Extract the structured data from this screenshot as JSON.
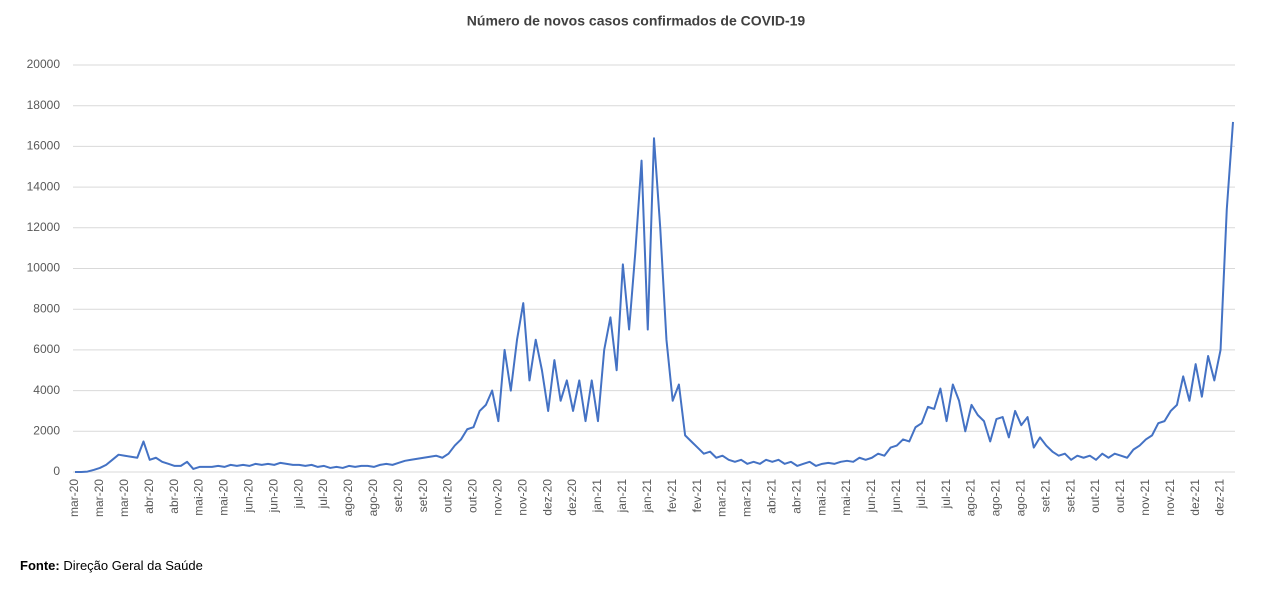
{
  "chart_data": {
    "type": "line",
    "title": "Número de novos casos confirmados de COVID-19",
    "categories": [
      "mar-20",
      null,
      null,
      null,
      "mar-20",
      null,
      null,
      null,
      "mar-20",
      null,
      null,
      null,
      "abr-20",
      null,
      null,
      null,
      "abr-20",
      null,
      null,
      null,
      "mai-20",
      null,
      null,
      null,
      "mai-20",
      null,
      null,
      null,
      "jun-20",
      null,
      null,
      null,
      "jun-20",
      null,
      null,
      null,
      "jul-20",
      null,
      null,
      null,
      "jul-20",
      null,
      null,
      null,
      "ago-20",
      null,
      null,
      null,
      "ago-20",
      null,
      null,
      null,
      "set-20",
      null,
      null,
      null,
      "set-20",
      null,
      null,
      null,
      "out-20",
      null,
      null,
      null,
      "out-20",
      null,
      null,
      null,
      "nov-20",
      null,
      null,
      null,
      "nov-20",
      null,
      null,
      null,
      "dez-20",
      null,
      null,
      null,
      "dez-20",
      null,
      null,
      null,
      "jan-21",
      null,
      null,
      null,
      "jan-21",
      null,
      null,
      null,
      "jan-21",
      null,
      null,
      null,
      "fev-21",
      null,
      null,
      null,
      "fev-21",
      null,
      null,
      null,
      "mar-21",
      null,
      null,
      null,
      "mar-21",
      null,
      null,
      null,
      "abr-21",
      null,
      null,
      null,
      "abr-21",
      null,
      null,
      null,
      "mai-21",
      null,
      null,
      null,
      "mai-21",
      null,
      null,
      null,
      "jun-21",
      null,
      null,
      null,
      "jun-21",
      null,
      null,
      null,
      "jul-21",
      null,
      null,
      null,
      "jul-21",
      null,
      null,
      null,
      "ago-21",
      null,
      null,
      null,
      "ago-21",
      null,
      null,
      null,
      "ago-21",
      null,
      null,
      null,
      "set-21",
      null,
      null,
      null,
      "set-21",
      null,
      null,
      null,
      "out-21",
      null,
      null,
      null,
      "out-21",
      null,
      null,
      null,
      "nov-21",
      null,
      null,
      null,
      "nov-21",
      null,
      null,
      null,
      "dez-21",
      null,
      null,
      null,
      "dez-21",
      null,
      null
    ],
    "values": [
      0,
      0,
      20,
      100,
      200,
      350,
      600,
      850,
      800,
      750,
      700,
      1500,
      600,
      700,
      500,
      400,
      300,
      300,
      500,
      150,
      250,
      250,
      250,
      300,
      250,
      350,
      300,
      350,
      300,
      400,
      350,
      400,
      350,
      450,
      400,
      350,
      350,
      300,
      350,
      250,
      300,
      200,
      250,
      200,
      300,
      250,
      300,
      300,
      250,
      350,
      400,
      350,
      450,
      550,
      600,
      650,
      700,
      750,
      800,
      700,
      900,
      1300,
      1600,
      2100,
      2200,
      3000,
      3300,
      4000,
      2500,
      6000,
      4000,
      6500,
      8300,
      4500,
      6500,
      5000,
      3000,
      5500,
      3500,
      4500,
      3000,
      4500,
      2500,
      4500,
      2500,
      6000,
      7600,
      5000,
      10200,
      7000,
      10800,
      15300,
      7000,
      16400,
      12000,
      6500,
      3500,
      4300,
      1800,
      1500,
      1200,
      900,
      1000,
      700,
      800,
      600,
      500,
      600,
      400,
      500,
      400,
      600,
      500,
      600,
      400,
      500,
      300,
      400,
      500,
      300,
      400,
      450,
      400,
      500,
      550,
      500,
      700,
      600,
      700,
      900,
      800,
      1200,
      1300,
      1600,
      1500,
      2200,
      2400,
      3200,
      3100,
      4100,
      2500,
      4300,
      3500,
      2000,
      3300,
      2800,
      2500,
      1500,
      2600,
      2700,
      1700,
      3000,
      2300,
      2700,
      1200,
      1700,
      1300,
      1000,
      800,
      900,
      600,
      800,
      700,
      800,
      600,
      900,
      700,
      900,
      800,
      700,
      1100,
      1300,
      1600,
      1800,
      2400,
      2500,
      3000,
      3300,
      4700,
      3500,
      5300,
      3700,
      5700,
      4500,
      6000,
      12900,
      17200
    ],
    "color": "#4472c4",
    "ylim": [
      0,
      20000
    ],
    "yticks": [
      0,
      2000,
      4000,
      6000,
      8000,
      10000,
      12000,
      14000,
      16000,
      18000,
      20000
    ],
    "grid": true
  },
  "source": {
    "label": "Fonte:",
    "text": "Direção Geral da Saúde"
  }
}
